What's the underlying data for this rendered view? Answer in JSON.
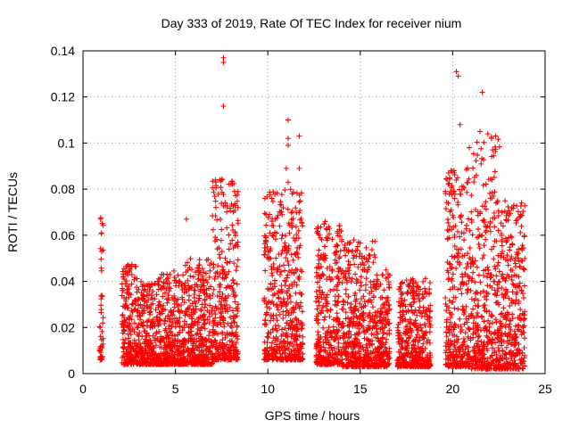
{
  "chart_data": {
    "type": "scatter",
    "title": "Day 333 of 2019, Rate Of TEC Index for receiver nium",
    "xlabel": "GPS time / hours",
    "ylabel": "ROTI / TECUs",
    "xlim": [
      0,
      25
    ],
    "ylim": [
      0,
      0.14
    ],
    "x_ticks": [
      "0",
      "5",
      "10",
      "15",
      "20",
      "25"
    ],
    "y_ticks": [
      "0",
      "0.02",
      "0.04",
      "0.06",
      "0.08",
      "0.1",
      "0.12",
      "0.14"
    ],
    "grid": true,
    "marker": "+",
    "color": "#ff0000",
    "activity_bands": [
      {
        "x": [
          0.9,
          1.1
        ],
        "y": [
          0.006,
          0.068
        ]
      },
      {
        "x": [
          2.1,
          3.0
        ],
        "y": [
          0.004,
          0.048
        ]
      },
      {
        "x": [
          3.0,
          4.0
        ],
        "y": [
          0.004,
          0.04
        ]
      },
      {
        "x": [
          4.0,
          5.5
        ],
        "y": [
          0.004,
          0.045
        ]
      },
      {
        "x": [
          5.5,
          7.0
        ],
        "y": [
          0.004,
          0.05
        ]
      },
      {
        "x": [
          7.0,
          8.4
        ],
        "y": [
          0.006,
          0.085
        ]
      },
      {
        "x": [
          9.8,
          11.9
        ],
        "y": [
          0.006,
          0.08
        ]
      },
      {
        "x": [
          12.6,
          14.0
        ],
        "y": [
          0.004,
          0.065
        ]
      },
      {
        "x": [
          14.0,
          15.8
        ],
        "y": [
          0.003,
          0.058
        ]
      },
      {
        "x": [
          15.8,
          16.6
        ],
        "y": [
          0.003,
          0.045
        ]
      },
      {
        "x": [
          17.0,
          18.8
        ],
        "y": [
          0.003,
          0.042
        ]
      },
      {
        "x": [
          19.6,
          21.0
        ],
        "y": [
          0.003,
          0.09
        ]
      },
      {
        "x": [
          21.0,
          22.6
        ],
        "y": [
          0.002,
          0.105
        ]
      },
      {
        "x": [
          22.6,
          23.9
        ],
        "y": [
          0.002,
          0.075
        ]
      }
    ],
    "outliers": [
      {
        "x": 7.6,
        "y": 0.137
      },
      {
        "x": 7.6,
        "y": 0.135
      },
      {
        "x": 7.6,
        "y": 0.116
      },
      {
        "x": 7.4,
        "y": 0.084
      },
      {
        "x": 8.2,
        "y": 0.079
      },
      {
        "x": 11.1,
        "y": 0.11
      },
      {
        "x": 11.1,
        "y": 0.102
      },
      {
        "x": 11.1,
        "y": 0.099
      },
      {
        "x": 11.7,
        "y": 0.103
      },
      {
        "x": 11.0,
        "y": 0.089
      },
      {
        "x": 11.7,
        "y": 0.089
      },
      {
        "x": 11.1,
        "y": 0.083
      },
      {
        "x": 9.9,
        "y": 0.059
      },
      {
        "x": 20.2,
        "y": 0.131
      },
      {
        "x": 20.3,
        "y": 0.129
      },
      {
        "x": 21.6,
        "y": 0.122
      },
      {
        "x": 20.4,
        "y": 0.108
      },
      {
        "x": 21.9,
        "y": 0.104
      },
      {
        "x": 22.1,
        "y": 0.102
      },
      {
        "x": 20.9,
        "y": 0.098
      },
      {
        "x": 0.95,
        "y": 0.067
      },
      {
        "x": 13.1,
        "y": 0.066
      },
      {
        "x": 5.6,
        "y": 0.067
      }
    ]
  }
}
